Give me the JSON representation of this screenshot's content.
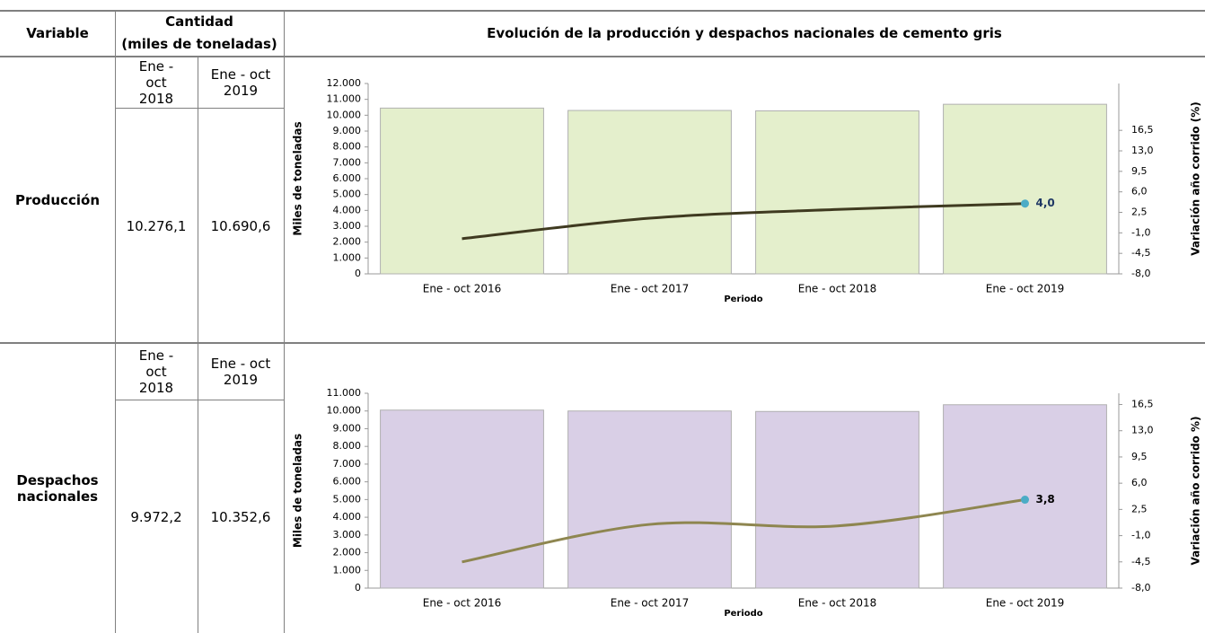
{
  "table": {
    "headers": [
      "Variable",
      "Cantidad",
      "(miles de toneladas)"
    ],
    "title": "Evolución de la producción y despachos nacionales de cemento gris",
    "rows": [
      {
        "name": "Producción",
        "periods": [
          "Ene - oct 2018",
          "Ene - oct 2019"
        ],
        "values": [
          "10.276,1",
          "10.690,6"
        ]
      },
      {
        "name": "Despachos nacionales",
        "periods": [
          "Ene - oct 2018",
          "Ene - oct 2019"
        ],
        "values": [
          "9.972,2",
          "10.352,6"
        ]
      }
    ]
  },
  "chart_data": [
    {
      "type": "bar-line",
      "xlabel": "Periodo",
      "ylabel": "Miles de toneladas",
      "y2label": "Variación año corrido (%)",
      "categories": [
        "Ene - oct 2016",
        "Ene - oct 2017",
        "Ene - oct 2018",
        "Ene - oct 2019"
      ],
      "series": [
        {
          "type": "bar",
          "color": "#e4efcc",
          "values": [
            10450,
            10300,
            10276.1,
            10690.6
          ]
        },
        {
          "type": "line",
          "axis": "y2",
          "color": "#3f3a20",
          "values": [
            -2.0,
            1.5,
            3.0,
            4.0
          ],
          "value_labels": [
            null,
            null,
            null,
            "4,0"
          ]
        }
      ],
      "ylim": [
        0,
        12000
      ],
      "yticks": [
        0,
        {
          "value": 1000,
          "label": "1.000"
        },
        {
          "value": 2000,
          "label": "2.000"
        },
        {
          "value": 3000,
          "label": "3.000"
        },
        {
          "value": 4000,
          "label": "4.000"
        },
        {
          "value": 5000,
          "label": "5.000"
        },
        {
          "value": 6000,
          "label": "6.000"
        },
        {
          "value": 7000,
          "label": "7.000"
        },
        {
          "value": 8000,
          "label": "8.000"
        },
        {
          "value": 9000,
          "label": "9.000"
        },
        {
          "value": 10000,
          "label": "10.000"
        },
        {
          "value": 11000,
          "label": "11.000"
        },
        {
          "value": 12000,
          "label": "12.000"
        }
      ],
      "y2lim": [
        -8,
        24.5
      ],
      "y2ticks": [
        {
          "value": -8,
          "label": "-8,0"
        },
        {
          "value": -4.5,
          "label": "-4,5"
        },
        {
          "value": -1,
          "label": "-1,0"
        },
        {
          "value": 2.5,
          "label": "2,5"
        },
        {
          "value": 6,
          "label": "6,0"
        },
        {
          "value": 9.5,
          "label": "9,5"
        },
        {
          "value": 13,
          "label": "13,0"
        },
        {
          "value": 16.5,
          "label": "16,5"
        }
      ]
    },
    {
      "type": "bar-line",
      "xlabel": "Periodo",
      "ylabel": "Miles de toneladas",
      "y2label": "Variación año corrido %)",
      "categories": [
        "Ene - oct 2016",
        "Ene - oct 2017",
        "Ene - oct 2018",
        "Ene - oct 2019"
      ],
      "series": [
        {
          "type": "bar",
          "color": "#d9cfe6",
          "values": [
            10050,
            10000,
            9972.2,
            10352.6
          ]
        },
        {
          "type": "line",
          "axis": "y2",
          "color": "#8e8650",
          "values": [
            -4.5,
            0.5,
            0.3,
            3.8
          ],
          "value_labels": [
            null,
            null,
            null,
            "3,8"
          ]
        }
      ],
      "ylim": [
        0,
        11000
      ],
      "yticks": [
        0,
        {
          "value": 1000,
          "label": "1.000"
        },
        {
          "value": 2000,
          "label": "2.000"
        },
        {
          "value": 3000,
          "label": "3.000"
        },
        {
          "value": 4000,
          "label": "4.000"
        },
        {
          "value": 5000,
          "label": "5.000"
        },
        {
          "value": 6000,
          "label": "6.000"
        },
        {
          "value": 7000,
          "label": "7.000"
        },
        {
          "value": 8000,
          "label": "8.000"
        },
        {
          "value": 9000,
          "label": "9.000"
        },
        {
          "value": 10000,
          "label": "10.000"
        },
        {
          "value": 11000,
          "label": "11.000"
        }
      ],
      "y2lim": [
        -8,
        18
      ],
      "y2ticks": [
        {
          "value": -8,
          "label": "-8,0"
        },
        {
          "value": -4.5,
          "label": "-4,5"
        },
        {
          "value": -1,
          "label": "-1,0"
        },
        {
          "value": 2.5,
          "label": "2,5"
        },
        {
          "value": 6,
          "label": "6,0"
        },
        {
          "value": 9.5,
          "label": "9,5"
        },
        {
          "value": 13,
          "label": "13,0"
        },
        {
          "value": 16.5,
          "label": "16,5"
        }
      ]
    }
  ]
}
